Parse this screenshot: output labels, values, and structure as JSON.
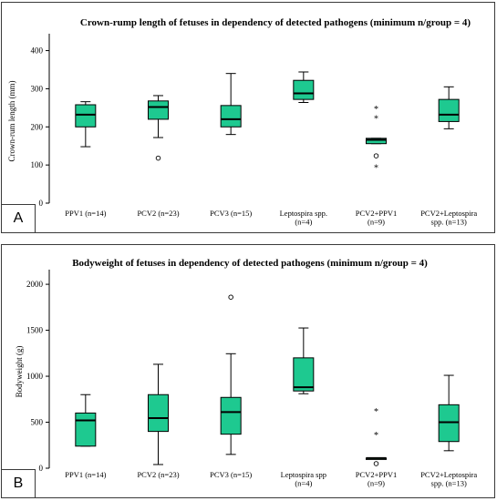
{
  "chart_data": [
    {
      "panel_letter": "A",
      "type": "box",
      "title": "Crown-rump length of fetuses in dependency of detected pathogens (minimum n/group = 4)",
      "xlabel": "",
      "ylabel": "Crown-rum length (mm)",
      "ylim": [
        0,
        430
      ],
      "yticks": [
        0,
        100,
        200,
        300,
        400
      ],
      "box_color": "#1ec990",
      "categories": [
        {
          "label": [
            "PPV1 (n=14)"
          ],
          "whisker_low": 148,
          "q1": 200,
          "median": 232,
          "q3": 258,
          "whisker_high": 266,
          "outliers": []
        },
        {
          "label": [
            "PCV2 (n=23)"
          ],
          "whisker_low": 172,
          "q1": 220,
          "median": 252,
          "q3": 268,
          "whisker_high": 282,
          "outliers": [
            {
              "v": 118,
              "m": "o"
            }
          ]
        },
        {
          "label": [
            "PCV3 (n=15)"
          ],
          "whisker_low": 180,
          "q1": 200,
          "median": 220,
          "q3": 256,
          "whisker_high": 340,
          "outliers": []
        },
        {
          "label": [
            "Leptospira spp.",
            "(n=4)"
          ],
          "whisker_low": 264,
          "q1": 272,
          "median": 288,
          "q3": 322,
          "whisker_high": 344,
          "outliers": []
        },
        {
          "label": [
            "PCV2+PPV1",
            "(n=9)"
          ],
          "whisker_low": 156,
          "q1": 156,
          "median": 166,
          "q3": 170,
          "whisker_high": 170,
          "outliers": [
            {
              "v": 250,
              "m": "*"
            },
            {
              "v": 225,
              "m": "*"
            },
            {
              "v": 124,
              "m": "o"
            },
            {
              "v": 96,
              "m": "*"
            }
          ]
        },
        {
          "label": [
            "PCV2+Leptospira",
            "spp. (n=13)"
          ],
          "whisker_low": 195,
          "q1": 214,
          "median": 232,
          "q3": 272,
          "whisker_high": 305,
          "outliers": []
        }
      ]
    },
    {
      "panel_letter": "B",
      "type": "box",
      "title": "Bodyweight of fetuses in dependency of detected pathogens (minimum n/group = 4)",
      "xlabel": "",
      "ylabel": "Bodyweight (g)",
      "ylim": [
        0,
        2100
      ],
      "yticks": [
        0,
        500,
        1000,
        1500,
        2000
      ],
      "box_color": "#1ec990",
      "categories": [
        {
          "label": [
            "PPV1 (n=14)"
          ],
          "whisker_low": 240,
          "q1": 240,
          "median": 520,
          "q3": 600,
          "whisker_high": 800,
          "outliers": []
        },
        {
          "label": [
            "PCV2 (n=23)"
          ],
          "whisker_low": 40,
          "q1": 400,
          "median": 545,
          "q3": 800,
          "whisker_high": 1130,
          "outliers": []
        },
        {
          "label": [
            "PCV3 (n=15)"
          ],
          "whisker_low": 150,
          "q1": 370,
          "median": 610,
          "q3": 770,
          "whisker_high": 1245,
          "outliers": [
            {
              "v": 1860,
              "m": "o"
            }
          ]
        },
        {
          "label": [
            "Leptospira spp",
            "(n=4)"
          ],
          "whisker_low": 810,
          "q1": 840,
          "median": 880,
          "q3": 1200,
          "whisker_high": 1525,
          "outliers": []
        },
        {
          "label": [
            "PCV2+PPV1",
            "(n=9)"
          ],
          "whisker_low": 100,
          "q1": 100,
          "median": 110,
          "q3": 110,
          "whisker_high": 110,
          "outliers": [
            {
              "v": 630,
              "m": "*"
            },
            {
              "v": 370,
              "m": "*"
            },
            {
              "v": 50,
              "m": "o"
            }
          ]
        },
        {
          "label": [
            "PCV2+Leptospira",
            "spp. (n=13)"
          ],
          "whisker_low": 190,
          "q1": 290,
          "median": 500,
          "q3": 690,
          "whisker_high": 1010,
          "outliers": []
        }
      ]
    }
  ]
}
